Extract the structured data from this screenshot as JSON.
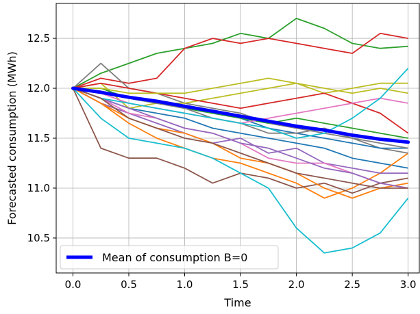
{
  "chart_data": {
    "type": "line",
    "xlabel": "Time",
    "ylabel": "Forecasted consumption (MWh)",
    "xlim": [
      -0.15,
      3.1
    ],
    "ylim": [
      10.15,
      12.85
    ],
    "grid": true,
    "legend_placement": "lower-left",
    "x_ticks": [
      0.0,
      0.5,
      1.0,
      1.5,
      2.0,
      2.5,
      3.0
    ],
    "x_tick_labels": [
      "0.0",
      "0.5",
      "1.0",
      "1.5",
      "2.0",
      "2.5",
      "3.0"
    ],
    "y_ticks": [
      10.5,
      11.0,
      11.5,
      12.0,
      12.5
    ],
    "y_tick_labels": [
      "10.5",
      "11.0",
      "11.5",
      "12.0",
      "12.5"
    ],
    "x": [
      0.0,
      0.25,
      0.5,
      0.75,
      1.0,
      1.25,
      1.5,
      1.75,
      2.0,
      2.25,
      2.5,
      2.75,
      3.0
    ],
    "series": [
      {
        "color": "#1f77b4",
        "values": [
          12.0,
          11.9,
          11.8,
          11.75,
          11.7,
          11.6,
          11.55,
          11.5,
          11.45,
          11.4,
          11.3,
          11.25,
          11.2
        ]
      },
      {
        "color": "#ff7f0e",
        "values": [
          12.0,
          11.85,
          11.65,
          11.5,
          11.4,
          11.3,
          11.25,
          11.15,
          11.05,
          10.9,
          11.0,
          11.15,
          11.35
        ]
      },
      {
        "color": "#2ca02c",
        "values": [
          12.0,
          12.15,
          12.25,
          12.35,
          12.4,
          12.45,
          12.55,
          12.5,
          12.7,
          12.6,
          12.45,
          12.4,
          12.42
        ]
      },
      {
        "color": "#d62728",
        "values": [
          12.0,
          12.1,
          12.05,
          12.1,
          12.4,
          12.5,
          12.45,
          12.5,
          12.45,
          12.4,
          12.35,
          12.55,
          12.5
        ]
      },
      {
        "color": "#9467bd",
        "values": [
          12.0,
          11.85,
          11.75,
          11.65,
          11.55,
          11.45,
          11.5,
          11.35,
          11.4,
          11.25,
          11.2,
          11.15,
          11.15
        ]
      },
      {
        "color": "#8c564b",
        "values": [
          12.0,
          11.4,
          11.3,
          11.3,
          11.2,
          11.05,
          11.15,
          11.1,
          11.0,
          11.05,
          10.95,
          11.05,
          11.1
        ]
      },
      {
        "color": "#e377c2",
        "values": [
          12.0,
          11.9,
          11.75,
          11.7,
          11.6,
          11.55,
          11.45,
          11.3,
          11.25,
          11.25,
          11.15,
          11.05,
          11.0
        ]
      },
      {
        "color": "#7f7f7f",
        "values": [
          12.0,
          12.25,
          12.0,
          11.95,
          11.85,
          11.8,
          11.75,
          11.65,
          11.6,
          11.55,
          11.5,
          11.4,
          11.35
        ]
      },
      {
        "color": "#bcbd22",
        "values": [
          12.0,
          12.05,
          11.8,
          11.85,
          11.85,
          11.9,
          11.95,
          12.0,
          12.05,
          11.95,
          12.0,
          12.05,
          12.05
        ]
      },
      {
        "color": "#17becf",
        "values": [
          12.0,
          11.7,
          11.5,
          11.45,
          11.4,
          11.3,
          11.15,
          11.0,
          10.6,
          10.35,
          10.4,
          10.55,
          10.9
        ]
      },
      {
        "color": "#1f77b4",
        "values": [
          12.0,
          11.95,
          11.9,
          11.85,
          11.8,
          11.75,
          11.7,
          11.6,
          11.55,
          11.5,
          11.45,
          11.4,
          11.4
        ]
      },
      {
        "color": "#ff7f0e",
        "values": [
          12.0,
          11.85,
          11.7,
          11.6,
          11.55,
          11.45,
          11.3,
          11.25,
          11.15,
          11.0,
          10.9,
          11.0,
          11.05
        ]
      },
      {
        "color": "#2ca02c",
        "values": [
          12.0,
          12.0,
          11.9,
          11.85,
          11.8,
          11.75,
          11.7,
          11.65,
          11.7,
          11.65,
          11.6,
          11.55,
          11.5
        ]
      },
      {
        "color": "#d62728",
        "values": [
          12.0,
          12.05,
          12.0,
          11.95,
          11.9,
          11.85,
          11.8,
          11.85,
          11.9,
          11.95,
          11.85,
          11.75,
          11.55
        ]
      },
      {
        "color": "#9467bd",
        "values": [
          12.0,
          11.9,
          11.8,
          11.7,
          11.6,
          11.55,
          11.45,
          11.4,
          11.3,
          11.2,
          11.15,
          11.05,
          11.0
        ]
      },
      {
        "color": "#e377c2",
        "values": [
          12.0,
          11.95,
          11.85,
          11.8,
          11.75,
          11.7,
          11.65,
          11.7,
          11.75,
          11.8,
          11.85,
          11.9,
          11.85
        ]
      },
      {
        "color": "#7f7f7f",
        "values": [
          12.0,
          11.95,
          11.9,
          11.85,
          11.8,
          11.7,
          11.65,
          11.55,
          11.55,
          11.6,
          11.5,
          11.45,
          11.4
        ]
      },
      {
        "color": "#bcbd22",
        "values": [
          12.0,
          12.0,
          11.95,
          11.95,
          11.95,
          12.0,
          12.05,
          12.1,
          12.05,
          12.0,
          11.95,
          12.0,
          11.95
        ]
      },
      {
        "color": "#17becf",
        "values": [
          12.0,
          11.9,
          11.85,
          11.8,
          11.75,
          11.7,
          11.65,
          11.6,
          11.5,
          11.55,
          11.7,
          11.9,
          12.2
        ]
      },
      {
        "color": "#8c564b",
        "values": [
          12.0,
          11.9,
          11.7,
          11.6,
          11.5,
          11.45,
          11.35,
          11.25,
          11.15,
          11.1,
          11.05,
          11.0,
          11.0
        ]
      }
    ],
    "mean_series": {
      "name": "Mean of consumption B=0",
      "color": "#0000ff",
      "values": [
        12.0,
        11.96,
        11.91,
        11.87,
        11.82,
        11.77,
        11.72,
        11.67,
        11.62,
        11.58,
        11.53,
        11.49,
        11.46
      ]
    }
  }
}
